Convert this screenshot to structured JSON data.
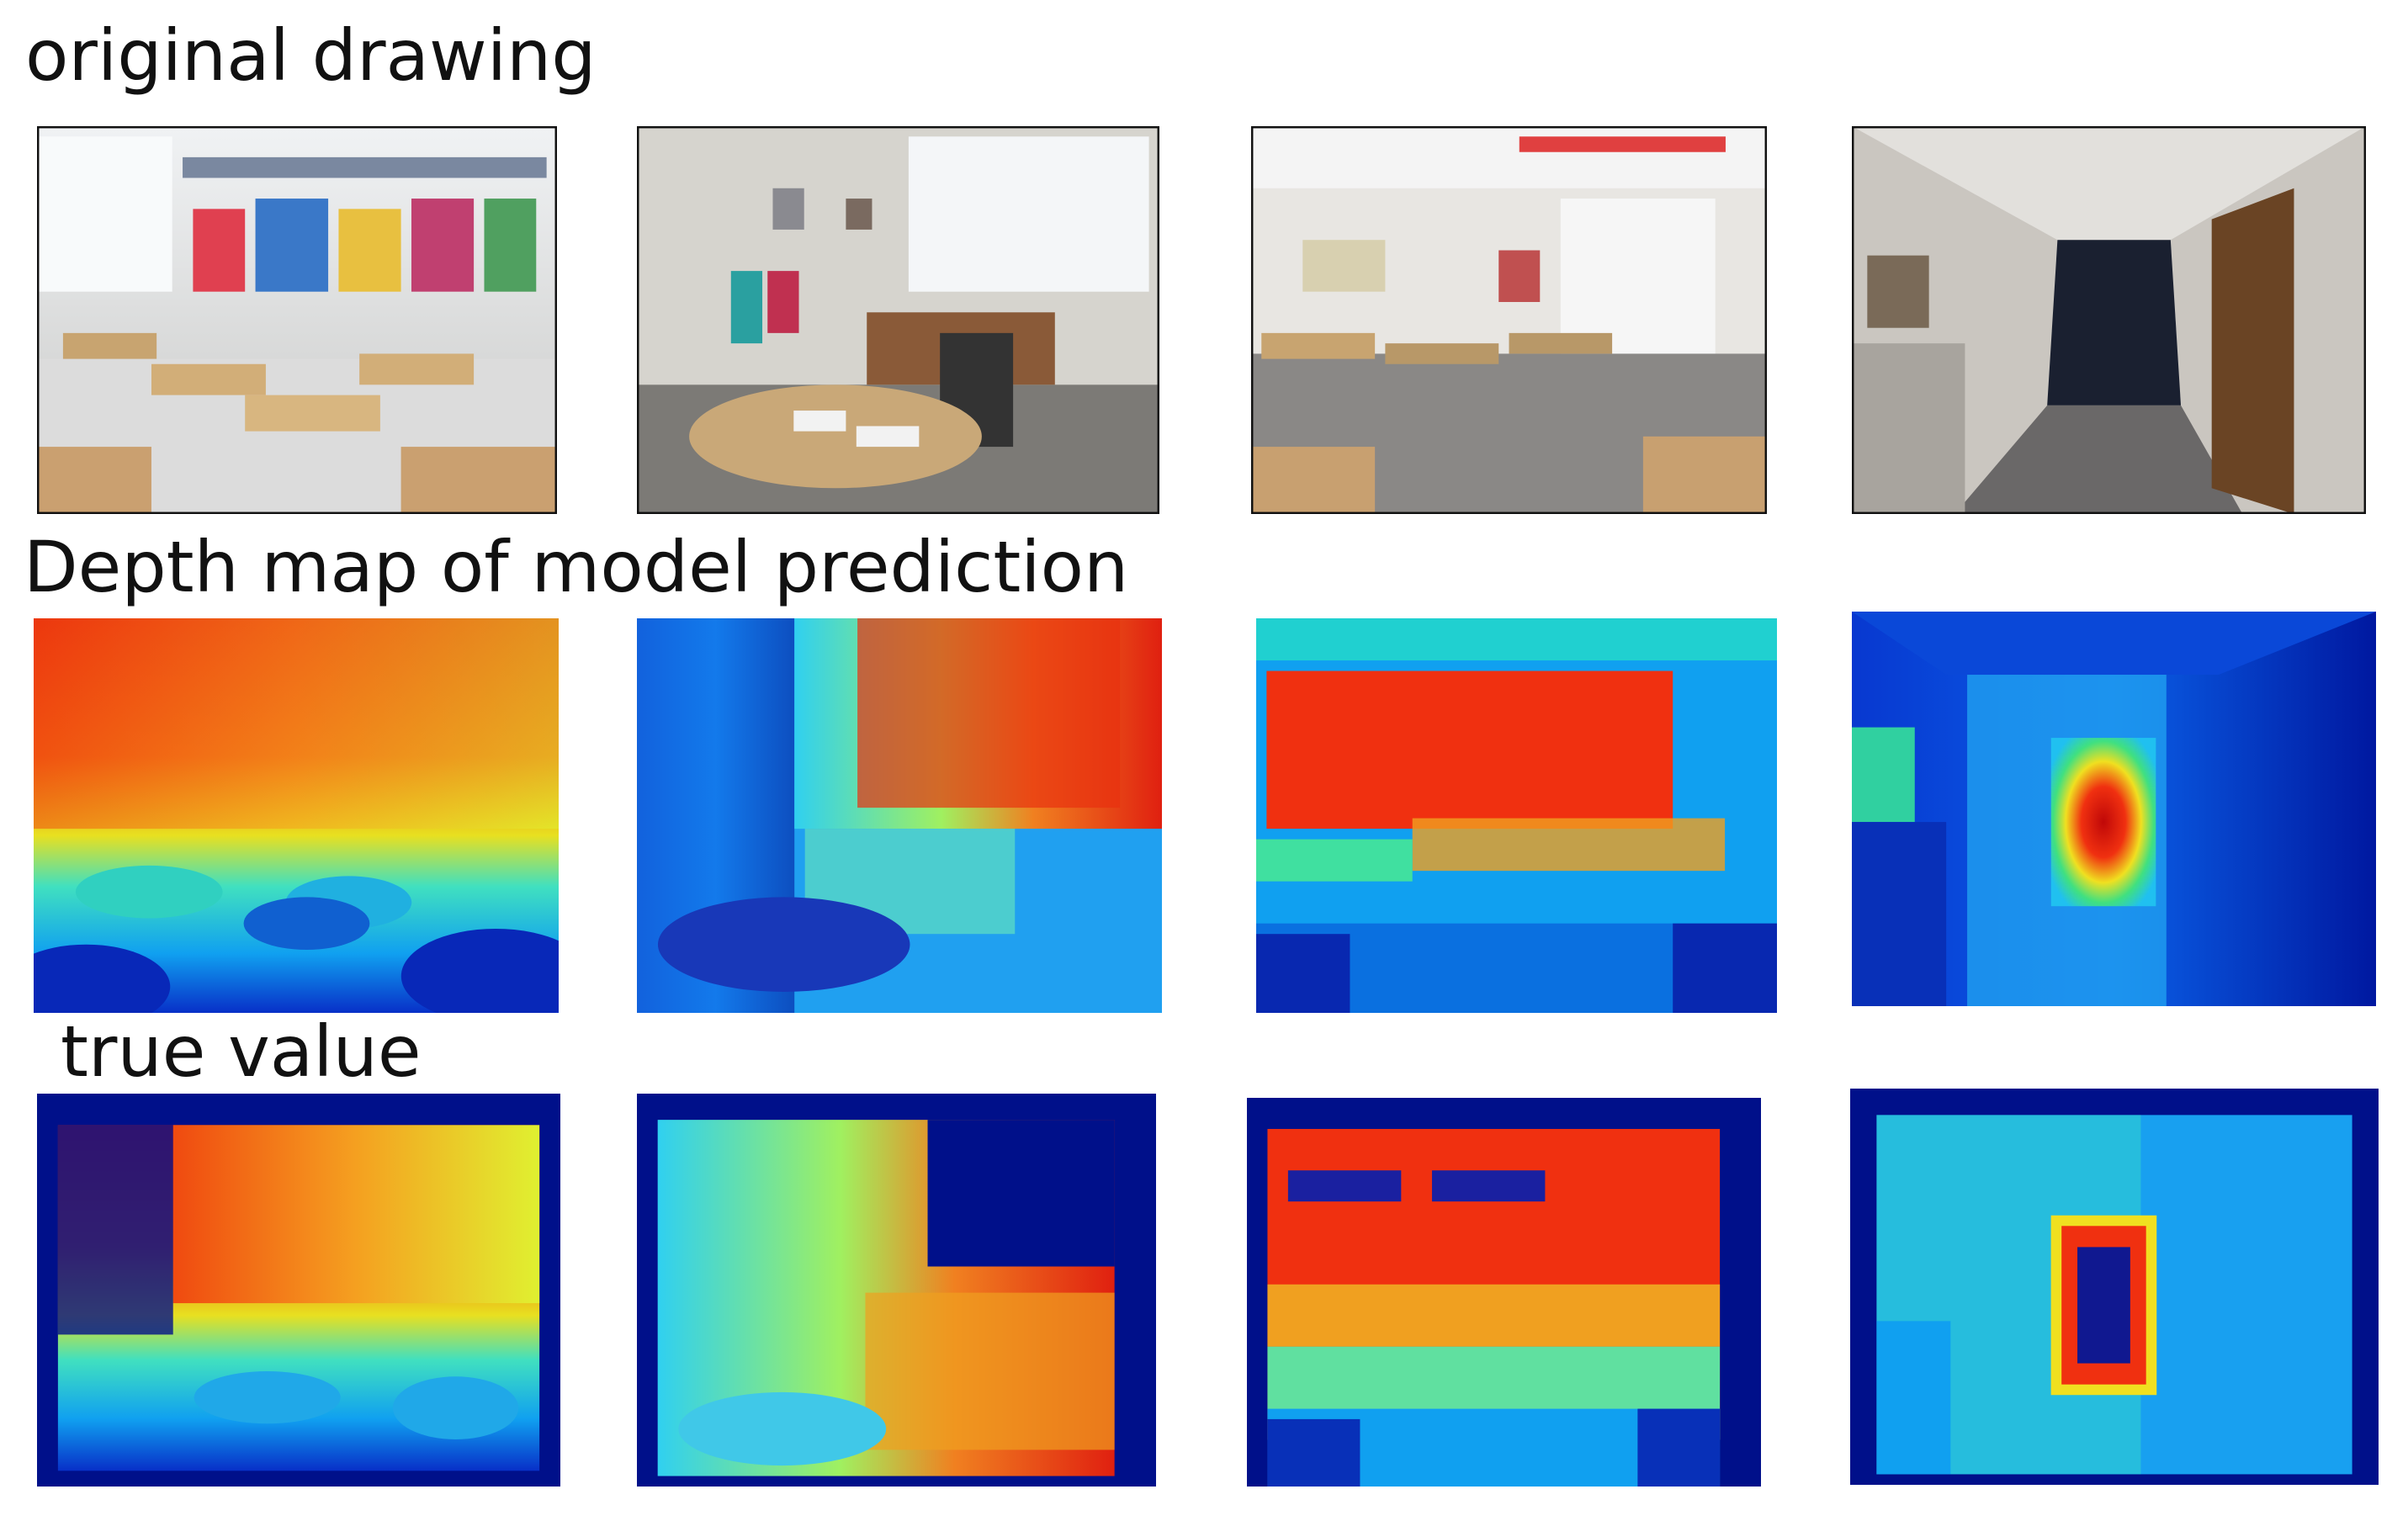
{
  "rows": [
    {
      "label": "original drawing"
    },
    {
      "label": "Depth map of model prediction"
    },
    {
      "label": "true value"
    }
  ]
}
